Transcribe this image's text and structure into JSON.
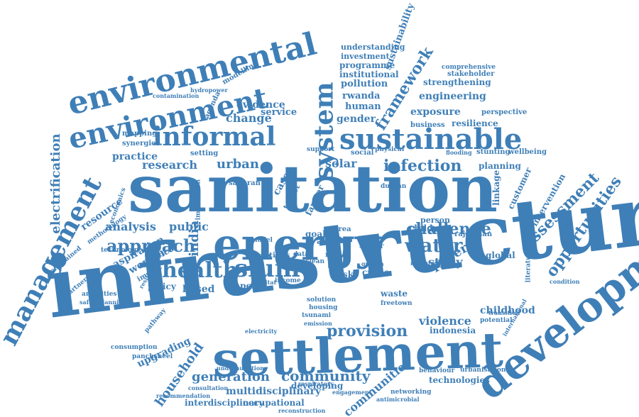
{
  "word_cloud": {
    "color": "#3f7fb7",
    "background": "#ffffff",
    "words": [
      {
        "text": "infrastructure",
        "size": "xxl",
        "orientation": "horizontal"
      },
      {
        "text": "sanitation",
        "size": "xxl",
        "orientation": "horizontal"
      },
      {
        "text": "settlement",
        "size": "xl",
        "orientation": "horizontal"
      },
      {
        "text": "energy",
        "size": "xl",
        "orientation": "horizontal"
      },
      {
        "text": "development",
        "size": "xl",
        "orientation": "diagonal"
      },
      {
        "text": "environmental",
        "size": "l",
        "orientation": "diagonal"
      },
      {
        "text": "environment",
        "size": "l",
        "orientation": "diagonal"
      },
      {
        "text": "management",
        "size": "l",
        "orientation": "diagonal"
      },
      {
        "text": "sustainable",
        "size": "l",
        "orientation": "horizontal"
      },
      {
        "text": "informal",
        "size": "l",
        "orientation": "horizontal"
      },
      {
        "text": "system",
        "size": "l",
        "orientation": "vertical"
      },
      {
        "text": "slum",
        "size": "l",
        "orientation": "horizontal"
      },
      {
        "text": "health",
        "size": "l",
        "orientation": "horizontal"
      },
      {
        "text": "approach",
        "size": "m",
        "orientation": "horizontal"
      },
      {
        "text": "water",
        "size": "m",
        "orientation": "horizontal"
      },
      {
        "text": "challenge",
        "size": "m",
        "orientation": "horizontal"
      },
      {
        "text": "infection",
        "size": "m",
        "orientation": "horizontal"
      },
      {
        "text": "assessment",
        "size": "m",
        "orientation": "diagonal"
      },
      {
        "text": "opportunities",
        "size": "m",
        "orientation": "diagonal"
      },
      {
        "text": "framework",
        "size": "m",
        "orientation": "diagonal"
      },
      {
        "text": "provision",
        "size": "m",
        "orientation": "horizontal"
      },
      {
        "text": "community",
        "size": "m",
        "orientation": "horizontal"
      },
      {
        "text": "household",
        "size": "m",
        "orientation": "diagonal"
      },
      {
        "text": "generation",
        "size": "m",
        "orientation": "horizontal"
      },
      {
        "text": "communities",
        "size": "m",
        "orientation": "diagonal"
      },
      {
        "text": "electrification",
        "size": "m",
        "orientation": "vertical"
      },
      {
        "text": "urban",
        "size": "m",
        "orientation": "horizontal"
      },
      {
        "text": "research",
        "size": "m",
        "orientation": "horizontal"
      },
      {
        "text": "change",
        "size": "m",
        "orientation": "horizontal"
      },
      {
        "text": "solar",
        "size": "m",
        "orientation": "horizontal"
      },
      {
        "text": "poverty",
        "size": "m",
        "orientation": "diagonal"
      },
      {
        "text": "study",
        "size": "m",
        "orientation": "horizontal"
      },
      {
        "text": "violence",
        "size": "m",
        "orientation": "horizontal"
      },
      {
        "text": "upgrading",
        "size": "s",
        "orientation": "diagonal"
      },
      {
        "text": "india",
        "size": "m",
        "orientation": "vertical"
      },
      {
        "text": "sustainability",
        "size": "s",
        "orientation": "diagonal"
      },
      {
        "text": "exposure",
        "size": "s",
        "orientation": "horizontal"
      },
      {
        "text": "engineering",
        "size": "s",
        "orientation": "horizontal"
      },
      {
        "text": "evidence",
        "size": "s",
        "orientation": "horizontal"
      },
      {
        "text": "service",
        "size": "s",
        "orientation": "horizontal"
      },
      {
        "text": "gender",
        "size": "s",
        "orientation": "horizontal"
      },
      {
        "text": "human",
        "size": "s",
        "orientation": "horizontal"
      },
      {
        "text": "rwanda",
        "size": "s",
        "orientation": "horizontal"
      },
      {
        "text": "pollution",
        "size": "s",
        "orientation": "horizontal"
      },
      {
        "text": "institutional",
        "size": "s",
        "orientation": "horizontal"
      },
      {
        "text": "programme",
        "size": "s",
        "orientation": "horizontal"
      },
      {
        "text": "investment",
        "size": "s",
        "orientation": "horizontal"
      },
      {
        "text": "understanding",
        "size": "s",
        "orientation": "horizontal"
      },
      {
        "text": "strengthening",
        "size": "s",
        "orientation": "horizontal"
      },
      {
        "text": "resilience",
        "size": "s",
        "orientation": "horizontal"
      },
      {
        "text": "planning",
        "size": "s",
        "orientation": "horizontal"
      },
      {
        "text": "customer",
        "size": "s",
        "orientation": "diagonal"
      },
      {
        "text": "intervention",
        "size": "s",
        "orientation": "diagonal"
      },
      {
        "text": "linkage",
        "size": "s",
        "orientation": "vertical"
      },
      {
        "text": "analysis",
        "size": "s",
        "orientation": "horizontal"
      },
      {
        "text": "public",
        "size": "s",
        "orientation": "horizontal"
      },
      {
        "text": "practice",
        "size": "s",
        "orientation": "horizontal"
      },
      {
        "text": "resource",
        "size": "s",
        "orientation": "diagonal"
      },
      {
        "text": "aspiration",
        "size": "s",
        "orientation": "diagonal"
      },
      {
        "text": "woman",
        "size": "s",
        "orientation": "diagonal"
      },
      {
        "text": "africa",
        "size": "s",
        "orientation": "diagonal"
      },
      {
        "text": "policy",
        "size": "s",
        "orientation": "horizontal"
      },
      {
        "text": "based",
        "size": "s",
        "orientation": "horizontal"
      },
      {
        "text": "paper",
        "size": "s",
        "orientation": "horizontal"
      },
      {
        "text": "risk",
        "size": "s",
        "orientation": "horizontal"
      },
      {
        "text": "crime",
        "size": "s",
        "orientation": "horizontal"
      },
      {
        "text": "childhood",
        "size": "s",
        "orientation": "horizontal"
      },
      {
        "text": "indonesia",
        "size": "s",
        "orientation": "horizontal"
      },
      {
        "text": "technologies",
        "size": "s",
        "orientation": "horizontal"
      },
      {
        "text": "multidisciplinary",
        "size": "s",
        "orientation": "horizontal"
      },
      {
        "text": "interdisciplinary",
        "size": "s",
        "orientation": "horizontal"
      },
      {
        "text": "occupational",
        "size": "s",
        "orientation": "horizontal"
      },
      {
        "text": "developing",
        "size": "s",
        "orientation": "horizontal"
      },
      {
        "text": "child",
        "size": "s",
        "orientation": "horizontal"
      },
      {
        "text": "person",
        "size": "s",
        "orientation": "horizontal"
      },
      {
        "text": "global",
        "size": "s",
        "orientation": "horizontal"
      },
      {
        "text": "waste",
        "size": "s",
        "orientation": "horizontal"
      },
      {
        "text": "perspective",
        "size": "xs",
        "orientation": "horizontal"
      },
      {
        "text": "business",
        "size": "xs",
        "orientation": "horizontal"
      },
      {
        "text": "stakeholder",
        "size": "xs",
        "orientation": "horizontal"
      },
      {
        "text": "comprehensive",
        "size": "xs",
        "orientation": "horizontal"
      },
      {
        "text": "modelling",
        "size": "xs",
        "orientation": "diagonal"
      },
      {
        "text": "contamination",
        "size": "xs",
        "orientation": "horizontal"
      },
      {
        "text": "hydropower",
        "size": "xs",
        "orientation": "horizontal"
      },
      {
        "text": "agenda",
        "size": "xs",
        "orientation": "diagonal"
      },
      {
        "text": "mapping",
        "size": "xs",
        "orientation": "horizontal"
      },
      {
        "text": "synergies",
        "size": "xs",
        "orientation": "horizontal"
      },
      {
        "text": "setting",
        "size": "xs",
        "orientation": "horizontal"
      },
      {
        "text": "saharan",
        "size": "xs",
        "orientation": "horizontal"
      },
      {
        "text": "support",
        "size": "xs",
        "orientation": "horizontal"
      },
      {
        "text": "social",
        "size": "xs",
        "orientation": "horizontal"
      },
      {
        "text": "physical",
        "size": "xs",
        "orientation": "horizontal"
      },
      {
        "text": "stunting",
        "size": "xs",
        "orientation": "horizontal"
      },
      {
        "text": "wellbeing",
        "size": "xs",
        "orientation": "horizontal"
      },
      {
        "text": "flooding",
        "size": "xs",
        "orientation": "horizontal"
      },
      {
        "text": "durban",
        "size": "xs",
        "orientation": "horizontal"
      },
      {
        "text": "goal",
        "size": "xs",
        "orientation": "horizontal"
      },
      {
        "text": "case",
        "size": "xs",
        "orientation": "diagonal"
      },
      {
        "text": "target",
        "size": "xs",
        "orientation": "diagonal"
      },
      {
        "text": "farmer",
        "size": "xs",
        "orientation": "diagonal"
      },
      {
        "text": "area",
        "size": "xs",
        "orientation": "horizontal"
      },
      {
        "text": "acc",
        "size": "xs",
        "orientation": "horizontal"
      },
      {
        "text": "sector",
        "size": "xs",
        "orientation": "horizontal"
      },
      {
        "text": "rural",
        "size": "xs",
        "orientation": "horizontal"
      },
      {
        "text": "cities",
        "size": "xs",
        "orientation": "horizontal"
      },
      {
        "text": "brazil",
        "size": "xs",
        "orientation": "horizontal"
      },
      {
        "text": "data",
        "size": "xs",
        "orientation": "horizontal"
      },
      {
        "text": "clean",
        "size": "xs",
        "orientation": "horizontal"
      },
      {
        "text": "model",
        "size": "xs",
        "orientation": "horizontal"
      },
      {
        "text": "implication",
        "size": "xs",
        "orientation": "vertical"
      },
      {
        "text": "methodology",
        "size": "xs",
        "orientation": "diagonal"
      },
      {
        "text": "economics",
        "size": "xs",
        "orientation": "diagonal"
      },
      {
        "text": "technology",
        "size": "xs",
        "orientation": "horizontal"
      },
      {
        "text": "partnership",
        "size": "xs",
        "orientation": "diagonal"
      },
      {
        "text": "constrained",
        "size": "xs",
        "orientation": "diagonal"
      },
      {
        "text": "amenities",
        "size": "xs",
        "orientation": "horizontal"
      },
      {
        "text": "safetyplanning",
        "size": "xs",
        "orientation": "horizontal"
      },
      {
        "text": "impact",
        "size": "xs",
        "orientation": "diagonal"
      },
      {
        "text": "resilient",
        "size": "xs",
        "orientation": "diagonal"
      },
      {
        "text": "pathway",
        "size": "xs",
        "orientation": "diagonal"
      },
      {
        "text": "consumption",
        "size": "xs",
        "orientation": "horizontal"
      },
      {
        "text": "panchsheel",
        "size": "xs",
        "orientation": "horizontal"
      },
      {
        "text": "electricity",
        "size": "xs",
        "orientation": "horizontal"
      },
      {
        "text": "income",
        "size": "xs",
        "orientation": "horizontal"
      },
      {
        "text": "habitat",
        "size": "xs",
        "orientation": "horizontal"
      },
      {
        "text": "solution",
        "size": "xs",
        "orientation": "horizontal"
      },
      {
        "text": "housing",
        "size": "xs",
        "orientation": "horizontal"
      },
      {
        "text": "tsunami",
        "size": "xs",
        "orientation": "horizontal"
      },
      {
        "text": "emission",
        "size": "xs",
        "orientation": "horizontal"
      },
      {
        "text": "freetown",
        "size": "xs",
        "orientation": "horizontal"
      },
      {
        "text": "growth",
        "size": "xs",
        "orientation": "horizontal"
      },
      {
        "text": "maputo",
        "size": "xs",
        "orientation": "horizontal"
      },
      {
        "text": "countrie",
        "size": "xs",
        "orientation": "horizontal"
      },
      {
        "text": "rajasthan",
        "size": "xs",
        "orientation": "horizontal"
      },
      {
        "text": "literature",
        "size": "xs",
        "orientation": "vertical"
      },
      {
        "text": "condition",
        "size": "xs",
        "orientation": "horizontal"
      },
      {
        "text": "transition",
        "size": "xs",
        "orientation": "horizontal"
      },
      {
        "text": "potential",
        "size": "xs",
        "orientation": "horizontal"
      },
      {
        "text": "international",
        "size": "xs",
        "orientation": "vertical"
      },
      {
        "text": "urbanisation",
        "size": "xs",
        "orientation": "horizontal"
      },
      {
        "text": "behaviour",
        "size": "xs",
        "orientation": "horizontal"
      },
      {
        "text": "networking",
        "size": "xs",
        "orientation": "horizontal"
      },
      {
        "text": "antimicrobial",
        "size": "xs",
        "orientation": "horizontal"
      },
      {
        "text": "engagement",
        "size": "xs",
        "orientation": "horizontal"
      },
      {
        "text": "respiratory",
        "size": "xs",
        "orientation": "horizontal"
      },
      {
        "text": "consultation",
        "size": "xs",
        "orientation": "horizontal"
      },
      {
        "text": "recommendation",
        "size": "xs",
        "orientation": "horizontal"
      },
      {
        "text": "undernutrition",
        "size": "xs",
        "orientation": "horizontal"
      },
      {
        "text": "reconstruction",
        "size": "xs",
        "orientation": "horizontal"
      }
    ]
  }
}
